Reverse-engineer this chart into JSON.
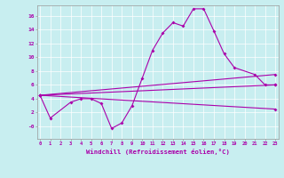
{
  "xlabel": "Windchill (Refroidissement éolien,°C)",
  "bg_color": "#c8eef0",
  "line_color": "#aa00aa",
  "x_ticks": [
    0,
    1,
    2,
    3,
    4,
    5,
    6,
    7,
    8,
    9,
    10,
    11,
    12,
    13,
    14,
    15,
    16,
    17,
    18,
    19,
    20,
    21,
    22,
    23
  ],
  "y_tick_vals": [
    0,
    2,
    4,
    6,
    8,
    10,
    12,
    14,
    16
  ],
  "y_tick_labels": [
    "-0",
    "2",
    "4",
    "6",
    "8",
    "10",
    "12",
    "14",
    "16"
  ],
  "ylim": [
    -1.8,
    17.5
  ],
  "xlim": [
    -0.3,
    23.3
  ],
  "series1_x": [
    0,
    1,
    3,
    4,
    5,
    6,
    7,
    8,
    9,
    10,
    11,
    12,
    13,
    14,
    15,
    16,
    17,
    18,
    19,
    21,
    22,
    23
  ],
  "series1_y": [
    4.5,
    1.2,
    3.5,
    4.0,
    4.0,
    3.3,
    -0.3,
    0.5,
    3.0,
    7.0,
    11.0,
    13.5,
    15.0,
    14.5,
    17.0,
    17.0,
    13.8,
    10.5,
    8.5,
    7.5,
    6.0,
    6.0
  ],
  "series2_x": [
    0,
    23
  ],
  "series2_y": [
    4.5,
    2.5
  ],
  "series3_x": [
    0,
    23
  ],
  "series3_y": [
    4.5,
    6.0
  ],
  "series4_x": [
    0,
    23
  ],
  "series4_y": [
    4.5,
    7.5
  ]
}
